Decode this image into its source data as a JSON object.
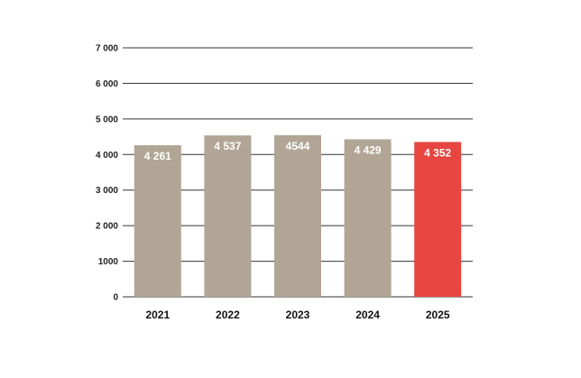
{
  "chart_data": {
    "type": "bar",
    "categories": [
      "2021",
      "2022",
      "2023",
      "2024",
      "2025"
    ],
    "values": [
      4261,
      4537,
      4544,
      4429,
      4352
    ],
    "data_labels": [
      "4 261",
      "4 537",
      "4544",
      "4 429",
      "4 352"
    ],
    "y_ticks": [
      0,
      1000,
      2000,
      3000,
      4000,
      5000,
      6000,
      7000
    ],
    "y_tick_labels": [
      "0",
      "1000",
      "2 000",
      "3 000",
      "4 000",
      "5 000",
      "6 000",
      "7 000"
    ],
    "ylim": [
      0,
      7000
    ],
    "grid": true,
    "legend": "none",
    "colors": {
      "bar": "#b1a595",
      "highlight": "#e64540",
      "grid": "#333333",
      "data_label": "#ffffff"
    },
    "highlight_category": "2025"
  }
}
